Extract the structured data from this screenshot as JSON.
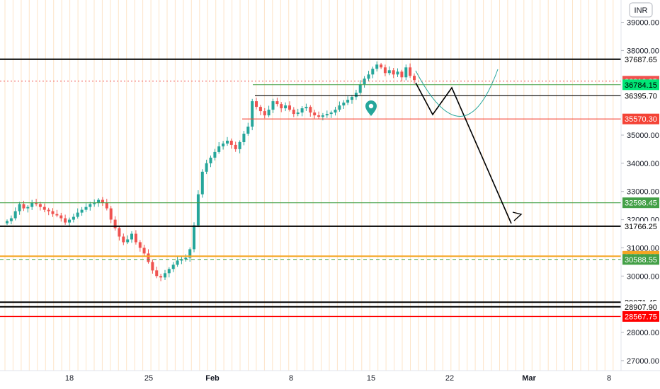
{
  "currency": "INR",
  "colors": {
    "up": "#26a69a",
    "down": "#ef5350",
    "grid": "#fde4c8",
    "background": "#ffffff",
    "axis_text": "#131722"
  },
  "x_axis": {
    "labels": [
      "18",
      "25",
      "Feb",
      "8",
      "15",
      "22",
      "Mar",
      "8"
    ]
  },
  "y_axis": {
    "labels": [
      "39000.00",
      "38000.00",
      "35000.00",
      "34000.00",
      "33000.00",
      "32000.00",
      "31000.00",
      "30000.00",
      "28000.00",
      "27000.00"
    ]
  },
  "chart_data": {
    "type": "candlestick",
    "currency": "INR",
    "x_ticks": [
      "18",
      "25",
      "Feb",
      "8",
      "15",
      "22",
      "Mar",
      "8"
    ],
    "y_ticks": [
      27000,
      28000,
      30000,
      31000,
      32000,
      33000,
      34000,
      35000,
      38000,
      39000
    ],
    "ylim": [
      26700,
      39600
    ],
    "price_levels": [
      {
        "label": "37687.65",
        "value": 37687.65,
        "color": "#000000",
        "bg": "#ffffff",
        "fg": "#000000"
      },
      {
        "label": "36910.95",
        "value": 36910.95,
        "color": "#ef5350",
        "bg": "#ef5350",
        "fg": "#ffffff"
      },
      {
        "label": "36784.15",
        "value": 36784.15,
        "color": "#43a047",
        "bg": "#00e676",
        "fg": "#000000"
      },
      {
        "label": "36395.70",
        "value": 36395.7,
        "color": "#000000",
        "bg": "#ffffff",
        "fg": "#000000"
      },
      {
        "label": "35570.30",
        "value": 35570.3,
        "color": "#f44336",
        "bg": "#f44336",
        "fg": "#ffffff"
      },
      {
        "label": "32598.45",
        "value": 32598.45,
        "color": "#43a047",
        "bg": "#43a047",
        "fg": "#ffffff"
      },
      {
        "label": "31766.25",
        "value": 31766.25,
        "color": "#000000",
        "bg": "#ffffff",
        "fg": "#000000"
      },
      {
        "label": "30701.10",
        "value": 30701.1,
        "color": "#f5a623",
        "bg": "#f5a623",
        "fg": "#ffffff"
      },
      {
        "label": "30588.55",
        "value": 30588.55,
        "color": "#43a047",
        "bg": "#43a047",
        "fg": "#ffffff"
      },
      {
        "label": "29071.45",
        "value": 29071.45,
        "color": "#000000",
        "bg": "#ffffff",
        "fg": "#000000"
      },
      {
        "label": "28907.90",
        "value": 28907.9,
        "color": "#000000",
        "bg": "#ffffff",
        "fg": "#000000"
      },
      {
        "label": "28567.75",
        "value": 28567.75,
        "color": "#ff0000",
        "bg": "#ff0000",
        "fg": "#ffffff"
      }
    ],
    "closes": [
      31950,
      32050,
      32300,
      32550,
      32400,
      32450,
      32600,
      32550,
      32450,
      32350,
      32300,
      32200,
      32150,
      32050,
      31900,
      32000,
      32100,
      32250,
      32350,
      32450,
      32550,
      32600,
      32700,
      32600,
      32400,
      32000,
      31700,
      31400,
      31200,
      31300,
      31500,
      31200,
      31000,
      30800,
      30500,
      30200,
      30000,
      29950,
      30100,
      30250,
      30400,
      30550,
      30600,
      30650,
      30950,
      31800,
      32900,
      33700,
      34000,
      34200,
      34400,
      34600,
      34700,
      34800,
      34650,
      34500,
      34750,
      35050,
      35300,
      36200,
      36000,
      35850,
      35700,
      35900,
      36200,
      36100,
      35950,
      36050,
      35900,
      35750,
      35800,
      35950,
      36000,
      35800,
      35700,
      35650,
      35700,
      35750,
      35800,
      35900,
      36050,
      36150,
      36250,
      36350,
      36500,
      36800,
      37000,
      37150,
      37350,
      37500,
      37400,
      37200,
      37300,
      37150,
      37250,
      37050,
      37400,
      37100,
      36950
    ]
  }
}
